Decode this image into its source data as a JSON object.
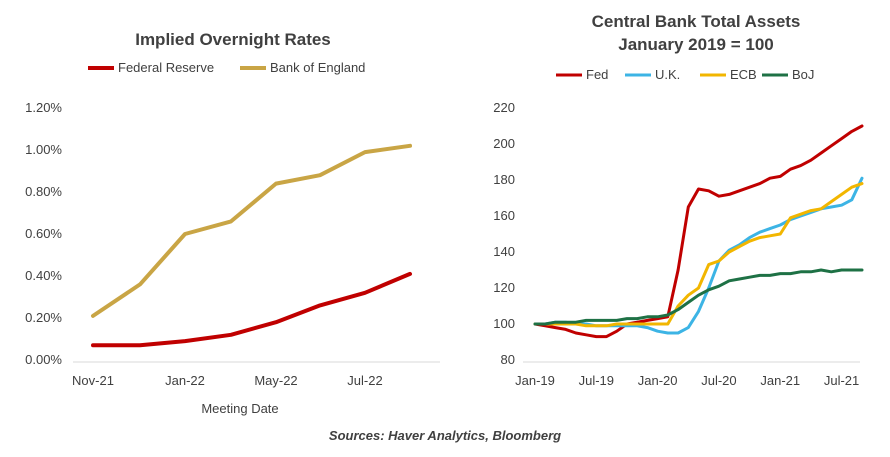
{
  "source_note": "Sources: Haver Analytics, Bloomberg",
  "chart_data": [
    {
      "type": "line",
      "title": "Implied Overnight Rates",
      "xlabel": "Meeting Date",
      "ylabel": "",
      "x": [
        "Nov-21",
        "Dec-21",
        "Jan-22",
        "Mar-22",
        "May-22",
        "Jun-22",
        "Jul-22",
        "Sep-22"
      ],
      "xticks": [
        "Nov-21",
        "Jan-22",
        "May-22",
        "Jul-22"
      ],
      "yticks": [
        "0.00%",
        "0.20%",
        "0.40%",
        "0.60%",
        "0.80%",
        "1.00%",
        "1.20%"
      ],
      "ylim": [
        0,
        1.2
      ],
      "legend_position": "top",
      "series": [
        {
          "name": "Federal Reserve",
          "color": "#C00000",
          "values": [
            0.07,
            0.07,
            0.09,
            0.12,
            0.18,
            0.26,
            0.32,
            0.41
          ]
        },
        {
          "name": "Bank of England",
          "color": "#C9A545",
          "values": [
            0.21,
            0.36,
            0.6,
            0.66,
            0.84,
            0.88,
            0.99,
            1.02
          ]
        }
      ]
    },
    {
      "type": "line",
      "title": "Central Bank Total Assets",
      "subtitle": "January 2019 = 100",
      "xlabel": "",
      "ylabel": "",
      "x": [
        "Jan-19",
        "Feb-19",
        "Mar-19",
        "Apr-19",
        "May-19",
        "Jun-19",
        "Jul-19",
        "Aug-19",
        "Sep-19",
        "Oct-19",
        "Nov-19",
        "Dec-19",
        "Jan-20",
        "Feb-20",
        "Mar-20",
        "Apr-20",
        "May-20",
        "Jun-20",
        "Jul-20",
        "Aug-20",
        "Sep-20",
        "Oct-20",
        "Nov-20",
        "Dec-20",
        "Jan-21",
        "Feb-21",
        "Mar-21",
        "Apr-21",
        "May-21",
        "Jun-21",
        "Jul-21",
        "Aug-21",
        "Sep-21"
      ],
      "xticks": [
        "Jan-19",
        "Jul-19",
        "Jan-20",
        "Jul-20",
        "Jan-21",
        "Jul-21"
      ],
      "yticks": [
        "80",
        "100",
        "120",
        "140",
        "160",
        "180",
        "200",
        "220"
      ],
      "ylim": [
        80,
        220
      ],
      "legend_position": "top",
      "series": [
        {
          "name": "Fed",
          "color": "#C00000",
          "values": [
            100,
            99,
            98,
            97,
            95,
            94,
            93,
            93,
            96,
            100,
            101,
            102,
            103,
            104,
            130,
            165,
            175,
            174,
            171,
            172,
            174,
            176,
            178,
            181,
            182,
            186,
            188,
            191,
            195,
            199,
            203,
            207,
            210
          ]
        },
        {
          "name": "U.K.",
          "color": "#3CB4E5",
          "values": [
            100,
            100,
            101,
            101,
            100,
            100,
            99,
            99,
            99,
            99,
            99,
            98,
            96,
            95,
            95,
            98,
            107,
            120,
            135,
            141,
            144,
            148,
            151,
            153,
            155,
            158,
            160,
            162,
            164,
            165,
            166,
            169,
            181
          ]
        },
        {
          "name": "ECB",
          "color": "#F2B600",
          "values": [
            100,
            100,
            100,
            100,
            100,
            99,
            99,
            99,
            100,
            100,
            100,
            100,
            100,
            100,
            110,
            116,
            120,
            133,
            135,
            140,
            143,
            146,
            148,
            149,
            150,
            159,
            161,
            163,
            164,
            168,
            172,
            176,
            178
          ]
        },
        {
          "name": "BoJ",
          "color": "#1E7145",
          "values": [
            100,
            100,
            101,
            101,
            101,
            102,
            102,
            102,
            102,
            103,
            103,
            104,
            104,
            105,
            108,
            112,
            116,
            119,
            121,
            124,
            125,
            126,
            127,
            127,
            128,
            128,
            129,
            129,
            130,
            129,
            130,
            130,
            130
          ]
        }
      ]
    }
  ]
}
